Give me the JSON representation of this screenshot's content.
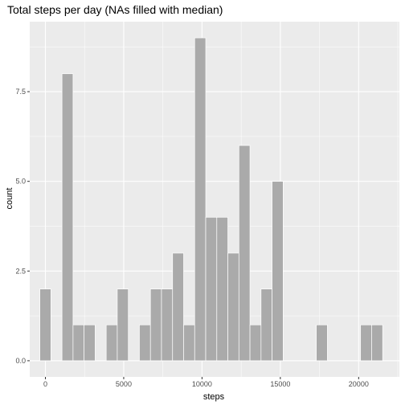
{
  "chart_data": {
    "type": "bar",
    "title": "Total steps per day (NAs filled with median)",
    "xlabel": "steps",
    "ylabel": "count",
    "xlim": [
      -1000,
      22600
    ],
    "ylim": [
      -0.45,
      9.45
    ],
    "x_ticks": [
      0,
      5000,
      10000,
      15000,
      20000
    ],
    "x_tick_labels": [
      "0",
      "5000",
      "10000",
      "15000",
      "20000"
    ],
    "y_ticks": [
      0,
      2.5,
      5,
      7.5
    ],
    "y_tick_labels": [
      "0.0",
      "2.5",
      "5.0",
      "7.5"
    ],
    "bin_width": 706,
    "bins": [
      {
        "x": 0,
        "count": 2
      },
      {
        "x": 1412,
        "count": 8
      },
      {
        "x": 2118,
        "count": 1
      },
      {
        "x": 2824,
        "count": 1
      },
      {
        "x": 4236,
        "count": 1
      },
      {
        "x": 4942,
        "count": 2
      },
      {
        "x": 6354,
        "count": 1
      },
      {
        "x": 7060,
        "count": 2
      },
      {
        "x": 7766,
        "count": 2
      },
      {
        "x": 8472,
        "count": 3
      },
      {
        "x": 9178,
        "count": 1
      },
      {
        "x": 9884,
        "count": 9
      },
      {
        "x": 10590,
        "count": 4
      },
      {
        "x": 11296,
        "count": 4
      },
      {
        "x": 12002,
        "count": 3
      },
      {
        "x": 12708,
        "count": 6
      },
      {
        "x": 13414,
        "count": 1
      },
      {
        "x": 14120,
        "count": 2
      },
      {
        "x": 14826,
        "count": 5
      },
      {
        "x": 17650,
        "count": 1
      },
      {
        "x": 20474,
        "count": 1
      },
      {
        "x": 21180,
        "count": 1
      }
    ],
    "grid": true,
    "colors": {
      "panel": "#ebebeb",
      "grid_major": "#ffffff",
      "bar_fill": "#aaaaaa",
      "bar_stroke": "#ffffff"
    }
  }
}
